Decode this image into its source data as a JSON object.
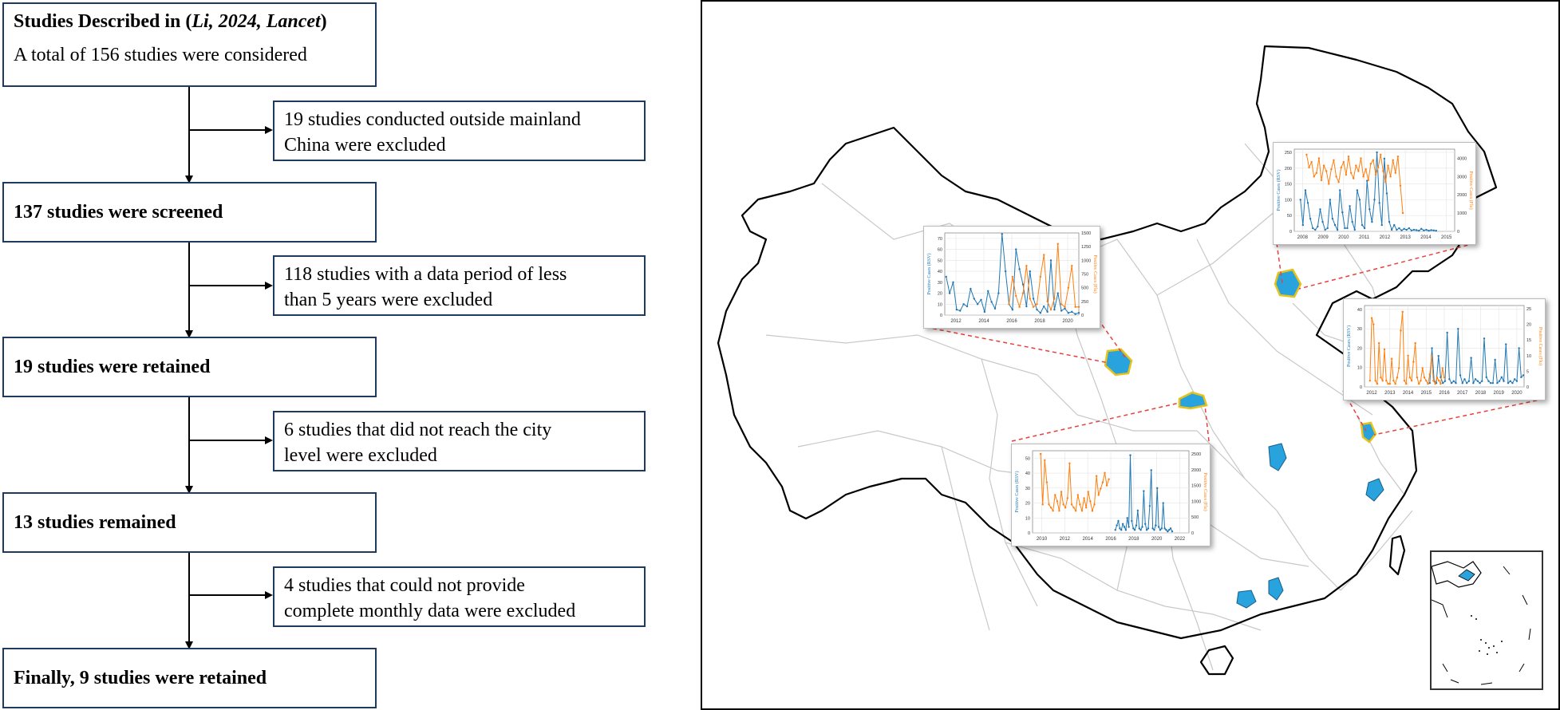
{
  "flowchart": {
    "source_prefix": "Studies Described in (",
    "source_author": "Li, 2024, Lancet",
    "source_suffix": ")",
    "total": "A total of 156 studies were considered",
    "steps": [
      {
        "kept": "137 studies were screened",
        "excluded": [
          "19 studies conducted outside mainland",
          "China were excluded"
        ]
      },
      {
        "kept": "19 studies were retained",
        "excluded": [
          "118 studies with a data period of less",
          "than 5 years were excluded"
        ]
      },
      {
        "kept": "13 studies remained",
        "excluded": [
          "6 studies that did not reach the city",
          "level were excluded"
        ]
      },
      {
        "kept": "Finally, 9 studies were retained",
        "excluded": [
          "4 studies that could not provide",
          "complete monthly data were excluded"
        ]
      }
    ]
  },
  "map": {
    "colors": {
      "highlight": "#29a3dd",
      "highlight_edge": "#e7c21b",
      "rsv": "#1f77b4",
      "flu": "#ff7f0e",
      "leader": "#e8413c",
      "border": "#000000",
      "province": "#c8c8c8"
    }
  },
  "chart_data": [
    {
      "type": "line",
      "panel": "northwest",
      "ylabel_left": "Positive Cases (RSV)",
      "ylabel_right": "Positive Cases (Flu)",
      "x_ticks": [
        "2012",
        "2014",
        "2016",
        "2018",
        "2020"
      ],
      "y_ticks_left": [
        "0",
        "10",
        "20",
        "30",
        "40",
        "50",
        "60",
        "70"
      ],
      "y_ticks_right": [
        "0",
        "250",
        "500",
        "750",
        "1000",
        "1250",
        "1500"
      ],
      "ylim_left": [
        0,
        75
      ],
      "ylim_right": [
        0,
        1500
      ],
      "series": [
        {
          "name": "RSV",
          "axis": "left",
          "x_start": 2010.8,
          "x_step": 0.25,
          "values": [
            40,
            62,
            35,
            20,
            30,
            5,
            4,
            10,
            8,
            24,
            15,
            10,
            14,
            3,
            22,
            12,
            6,
            20,
            74,
            40,
            10,
            5,
            60,
            42,
            28,
            8,
            40,
            15,
            5,
            2,
            8,
            3,
            50,
            5,
            20,
            4,
            6,
            2,
            3,
            1,
            2,
            1
          ]
        },
        {
          "name": "Flu",
          "axis": "right",
          "x_start": 2015.8,
          "x_step": 0.25,
          "values": [
            200,
            700,
            350,
            150,
            400,
            900,
            300,
            150,
            200,
            700,
            1100,
            250,
            100,
            300,
            1300,
            200,
            150,
            500,
            900,
            150,
            150,
            1400,
            300,
            100
          ]
        }
      ]
    },
    {
      "type": "line",
      "panel": "north",
      "ylabel_left": "Positive Cases (RSV)",
      "ylabel_right": "Positive Cases (Flu)",
      "x_ticks": [
        "2008",
        "2009",
        "2010",
        "2011",
        "2012",
        "2013",
        "2014",
        "2015"
      ],
      "y_ticks_left": [
        "0",
        "50",
        "100",
        "150",
        "200",
        "250"
      ],
      "y_ticks_right": [
        "0",
        "1000",
        "2000",
        "3000",
        "4000"
      ],
      "ylim_left": [
        0,
        260
      ],
      "ylim_right": [
        0,
        4500
      ],
      "series": [
        {
          "name": "RSV",
          "axis": "left",
          "x_start": 2007.9,
          "x_step": 0.12,
          "values": [
            100,
            20,
            130,
            90,
            40,
            10,
            5,
            15,
            70,
            30,
            5,
            10,
            100,
            40,
            20,
            5,
            130,
            60,
            10,
            10,
            80,
            30,
            5,
            130,
            100,
            20,
            10,
            160,
            70,
            30,
            100,
            250,
            90,
            20,
            230,
            120,
            30,
            5,
            20,
            5,
            10,
            3,
            8,
            5,
            10,
            3,
            5,
            4,
            2,
            8,
            3,
            5,
            2,
            4,
            3,
            2
          ]
        },
        {
          "name": "Flu",
          "axis": "right",
          "x_start": 2008.2,
          "x_step": 0.12,
          "values": [
            4200,
            3500,
            3800,
            3000,
            3200,
            4000,
            2800,
            3600,
            3300,
            2600,
            3400,
            3900,
            3000,
            2700,
            3500,
            3800,
            3100,
            4100,
            3200,
            2900,
            3600,
            3300,
            4000,
            3000,
            3400,
            2800,
            3700,
            3900,
            3100,
            3500,
            4200,
            3300,
            2700,
            3600,
            3000,
            3900,
            3200,
            4100,
            2500,
            1000
          ]
        }
      ]
    },
    {
      "type": "line",
      "panel": "east",
      "ylabel_left": "Positive Cases (RSV)",
      "ylabel_right": "Positive Cases (Flu)",
      "x_ticks": [
        "2012",
        "2013",
        "2014",
        "2015",
        "2016",
        "2017",
        "2018",
        "2019",
        "2020"
      ],
      "y_ticks_left": [
        "0",
        "10",
        "20",
        "30",
        "40"
      ],
      "y_ticks_right": [
        "0",
        "5",
        "10",
        "15",
        "20",
        "25"
      ],
      "ylim_left": [
        0,
        42
      ],
      "ylim_right": [
        0,
        26
      ],
      "series": [
        {
          "name": "RSV",
          "axis": "left",
          "x_start": 2015.2,
          "x_step": 0.12,
          "values": [
            2,
            20,
            3,
            2,
            16,
            5,
            2,
            3,
            28,
            4,
            2,
            3,
            2,
            30,
            6,
            2,
            4,
            2,
            3,
            15,
            2,
            4,
            3,
            2,
            3,
            25,
            5,
            3,
            2,
            2,
            14,
            2,
            3,
            5,
            3,
            22,
            2,
            3,
            2,
            4,
            3,
            20,
            5,
            6,
            38
          ]
        },
        {
          "name": "Flu",
          "axis": "right",
          "x_start": 2011.9,
          "x_step": 0.1,
          "values": [
            2,
            22,
            20,
            2,
            1,
            14,
            3,
            2,
            12,
            2,
            1,
            1,
            9,
            2,
            1,
            3,
            6,
            18,
            24,
            2,
            1,
            10,
            3,
            2,
            8,
            14,
            3,
            1,
            2,
            6,
            3,
            2,
            1,
            4,
            10,
            2,
            1,
            3,
            2,
            1,
            6,
            3
          ]
        }
      ]
    },
    {
      "type": "line",
      "panel": "southwest",
      "ylabel_left": "Positive Cases (RSV)",
      "ylabel_right": "Positive Cases (Flu)",
      "x_ticks": [
        "2010",
        "2012",
        "2014",
        "2016",
        "2018",
        "2020",
        "2022"
      ],
      "y_ticks_left": [
        "0",
        "10",
        "20",
        "30",
        "40",
        "50"
      ],
      "y_ticks_right": [
        "0",
        "500",
        "1000",
        "1500",
        "2000",
        "2500"
      ],
      "ylim_left": [
        0,
        55
      ],
      "ylim_right": [
        0,
        2600
      ],
      "series": [
        {
          "name": "RSV",
          "axis": "left",
          "x_start": 2016.4,
          "x_step": 0.13,
          "values": [
            2,
            5,
            8,
            3,
            2,
            6,
            4,
            2,
            10,
            4,
            52,
            8,
            3,
            2,
            5,
            15,
            3,
            2,
            4,
            28,
            6,
            2,
            3,
            18,
            42,
            3,
            2,
            5,
            30,
            4,
            2,
            3,
            20,
            3,
            2,
            1,
            2,
            3,
            1
          ]
        },
        {
          "name": "Flu",
          "axis": "right",
          "x_start": 2009.9,
          "x_step": 0.18,
          "values": [
            2500,
            900,
            2300,
            1600,
            900,
            800,
            700,
            1200,
            1000,
            700,
            1300,
            900,
            800,
            1100,
            2200,
            900,
            800,
            700,
            1200,
            900,
            700,
            1100,
            800,
            1300,
            1000,
            700,
            900,
            1800,
            1200,
            1400,
            1600,
            1900,
            1500,
            1700
          ]
        }
      ]
    }
  ]
}
